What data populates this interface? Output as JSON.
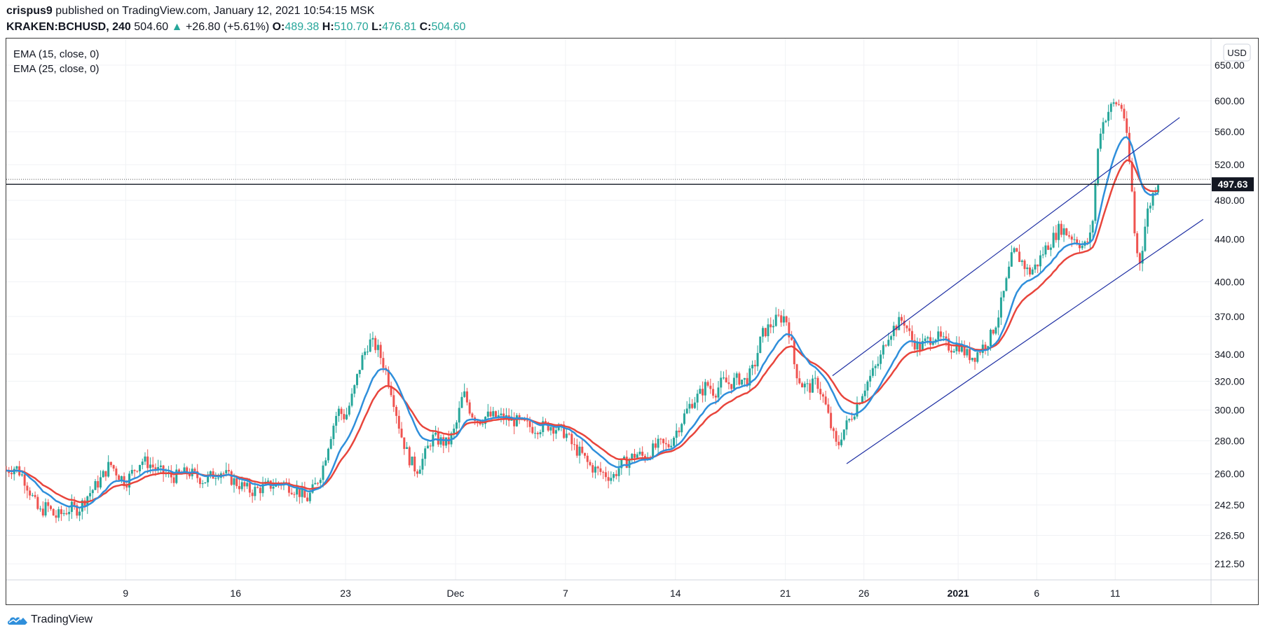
{
  "header": {
    "user": "crispus9",
    "text": "published on TradingView.com, January 12, 2021 10:54:15 MSK"
  },
  "ohlc": {
    "symbol": "KRAKEN:BCHUSD, 240",
    "last": "504.60",
    "change": "+26.80 (+5.61%)",
    "o_label": "O:",
    "o": "489.38",
    "h_label": "H:",
    "h": "510.70",
    "l_label": "L:",
    "l": "476.81",
    "c_label": "C:",
    "c": "504.60",
    "up_color": "#26a69a"
  },
  "legend": {
    "ema1": "EMA (15, close, 0)",
    "ema2": "EMA (25, close, 0)"
  },
  "brand": {
    "name": "TradingView"
  },
  "chart_data": {
    "type": "candlestick",
    "symbol": "KRAKEN:BCHUSD",
    "interval": "240",
    "currency": "USD",
    "price_label": "497.63",
    "price_line": 497.63,
    "y_scale": "log",
    "ylim": [
      205,
      690
    ],
    "y_ticks": [
      "650.00",
      "600.00",
      "560.00",
      "520.00",
      "480.00",
      "440.00",
      "400.00",
      "370.00",
      "340.00",
      "320.00",
      "300.00",
      "280.00",
      "260.00",
      "242.50",
      "226.50",
      "212.50"
    ],
    "x_ticks": [
      {
        "label": "9",
        "day": 9
      },
      {
        "label": "16",
        "day": 16
      },
      {
        "label": "23",
        "day": 23
      },
      {
        "label": "Dec",
        "day": 30
      },
      {
        "label": "7",
        "day": 37
      },
      {
        "label": "14",
        "day": 44
      },
      {
        "label": "21",
        "day": 51
      },
      {
        "label": "26",
        "day": 56
      },
      {
        "label": "2021",
        "day": 62,
        "bold": true
      },
      {
        "label": "6",
        "day": 67
      },
      {
        "label": "11",
        "day": 72
      }
    ],
    "xlim_days": [
      1.4,
      78.1
    ],
    "close_path": [
      [
        1.4,
        262
      ],
      [
        2,
        264
      ],
      [
        2.5,
        258
      ],
      [
        3,
        248
      ],
      [
        3.5,
        238
      ],
      [
        4,
        242
      ],
      [
        4.5,
        236
      ],
      [
        5,
        238
      ],
      [
        5.5,
        241
      ],
      [
        6,
        240
      ],
      [
        6.5,
        247
      ],
      [
        7,
        252
      ],
      [
        7.5,
        258
      ],
      [
        8,
        266
      ],
      [
        8.5,
        260
      ],
      [
        9,
        255
      ],
      [
        9.5,
        262
      ],
      [
        10,
        268
      ],
      [
        10.5,
        266
      ],
      [
        11,
        262
      ],
      [
        12,
        258
      ],
      [
        13,
        261
      ],
      [
        14,
        256
      ],
      [
        15,
        262
      ],
      [
        16,
        255
      ],
      [
        17,
        250
      ],
      [
        18,
        253
      ],
      [
        19,
        255
      ],
      [
        20,
        250
      ],
      [
        20.5,
        245
      ],
      [
        21,
        252
      ],
      [
        21.5,
        262
      ],
      [
        22,
        282
      ],
      [
        22.5,
        300
      ],
      [
        23,
        295
      ],
      [
        23.5,
        312
      ],
      [
        24,
        335
      ],
      [
        24.5,
        350
      ],
      [
        25,
        345
      ],
      [
        25.5,
        330
      ],
      [
        26,
        310
      ],
      [
        26.5,
        285
      ],
      [
        27,
        270
      ],
      [
        27.5,
        262
      ],
      [
        28,
        270
      ],
      [
        28.5,
        282
      ],
      [
        29,
        280
      ],
      [
        29.5,
        278
      ],
      [
        30,
        288
      ],
      [
        30.5,
        312
      ],
      [
        31,
        298
      ],
      [
        31.5,
        293
      ],
      [
        32,
        296
      ],
      [
        33,
        295
      ],
      [
        34,
        292
      ],
      [
        35,
        288
      ],
      [
        36,
        290
      ],
      [
        37,
        285
      ],
      [
        37.5,
        276
      ],
      [
        38,
        272
      ],
      [
        38.5,
        265
      ],
      [
        39,
        262
      ],
      [
        39.5,
        260
      ],
      [
        40,
        258
      ],
      [
        40.5,
        265
      ],
      [
        41,
        268
      ],
      [
        41.5,
        272
      ],
      [
        42,
        270
      ],
      [
        42.5,
        274
      ],
      [
        43,
        278
      ],
      [
        43.5,
        276
      ],
      [
        44,
        285
      ],
      [
        44.5,
        295
      ],
      [
        45,
        305
      ],
      [
        45.5,
        310
      ],
      [
        46,
        318
      ],
      [
        46.5,
        312
      ],
      [
        47,
        320
      ],
      [
        47.5,
        318
      ],
      [
        48,
        322
      ],
      [
        48.5,
        320
      ],
      [
        49,
        330
      ],
      [
        49.5,
        355
      ],
      [
        50,
        362
      ],
      [
        50.5,
        368
      ],
      [
        51,
        370
      ],
      [
        51.3,
        355
      ],
      [
        51.6,
        330
      ],
      [
        52,
        318
      ],
      [
        52.5,
        315
      ],
      [
        53,
        320
      ],
      [
        53.5,
        305
      ],
      [
        54,
        285
      ],
      [
        54.3,
        275
      ],
      [
        54.6,
        285
      ],
      [
        55,
        292
      ],
      [
        55.5,
        302
      ],
      [
        56,
        315
      ],
      [
        56.5,
        325
      ],
      [
        57,
        335
      ],
      [
        57.5,
        355
      ],
      [
        58,
        362
      ],
      [
        58.5,
        368
      ],
      [
        59,
        352
      ],
      [
        59.5,
        345
      ],
      [
        60,
        350
      ],
      [
        60.5,
        355
      ],
      [
        61,
        350
      ],
      [
        61.5,
        345
      ],
      [
        62,
        348
      ],
      [
        62.5,
        340
      ],
      [
        63,
        338
      ],
      [
        63.5,
        345
      ],
      [
        64,
        352
      ],
      [
        64.5,
        368
      ],
      [
        65,
        395
      ],
      [
        65.5,
        428
      ],
      [
        66,
        420
      ],
      [
        66.5,
        408
      ],
      [
        67,
        415
      ],
      [
        67.5,
        430
      ],
      [
        68,
        440
      ],
      [
        68.5,
        452
      ],
      [
        69,
        445
      ],
      [
        69.5,
        440
      ],
      [
        70,
        432
      ],
      [
        70.5,
        445
      ],
      [
        71,
        560
      ],
      [
        71.5,
        585
      ],
      [
        72,
        598
      ],
      [
        72.5,
        590
      ],
      [
        73,
        505
      ],
      [
        73.3,
        430
      ],
      [
        73.6,
        418
      ],
      [
        74,
        465
      ],
      [
        74.5,
        492
      ],
      [
        74.8,
        504.6
      ]
    ],
    "ema15_color": "#2f8fdb",
    "ema25_color": "#e8453c",
    "channel": {
      "color": "#1e2fa3",
      "upper": [
        {
          "day": 54,
          "price": 324
        },
        {
          "day": 76.1,
          "price": 578
        }
      ],
      "lower": [
        {
          "day": 54.9,
          "price": 266
        },
        {
          "day": 77.6,
          "price": 460
        }
      ]
    },
    "bull_color": "#26a69a",
    "bear_color": "#ef5350"
  }
}
